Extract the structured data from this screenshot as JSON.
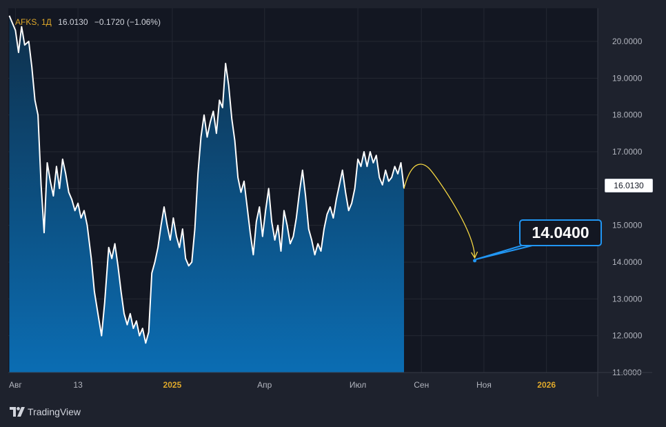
{
  "legend": {
    "symbol": "AFKS, 1Д",
    "last": "16.0130",
    "change": "−0.1720 (−1.06%)"
  },
  "price_tag": "16.0130",
  "target_label": "14.0400",
  "brand": {
    "name": "TradingView",
    "logo": "tradingview-logo-icon"
  },
  "colors": {
    "background": "#1e222d",
    "plot_background": "#131722",
    "line": "#ffffff",
    "area_top": "#0e2f4a",
    "area_bottom": "#0b6db3",
    "arrow": "#f5d742",
    "target": "#2196f3",
    "date_accent": "#e0a92a"
  },
  "chart_data": {
    "type": "area",
    "y_range": [
      11.0,
      20.9
    ],
    "y_ticks": [
      "20.0000",
      "19.0000",
      "18.0000",
      "17.0000",
      "16.0000",
      "15.0000",
      "14.0000",
      "13.0000",
      "12.0000",
      "11.0000"
    ],
    "x_range": [
      "2024-07-25",
      "2026-02-20"
    ],
    "x_ticks": [
      {
        "date": "2024-08-01",
        "label": "Авг",
        "accent": false
      },
      {
        "date": "2024-10-01",
        "label": "13",
        "accent": false
      },
      {
        "date": "2025-01-01",
        "label": "2025",
        "accent": true
      },
      {
        "date": "2025-04-01",
        "label": "Апр",
        "accent": false
      },
      {
        "date": "2025-07-01",
        "label": "Июл",
        "accent": false
      },
      {
        "date": "2025-09-01",
        "label": "Сен",
        "accent": false
      },
      {
        "date": "2025-11-01",
        "label": "Ноя",
        "accent": false
      },
      {
        "date": "2026-01-01",
        "label": "2026",
        "accent": true
      }
    ],
    "series": [
      {
        "points": [
          [
            "2024-07-26",
            20.7
          ],
          [
            "2024-08-01",
            20.3
          ],
          [
            "2024-08-04",
            19.7
          ],
          [
            "2024-08-07",
            20.4
          ],
          [
            "2024-08-10",
            19.9
          ],
          [
            "2024-08-14",
            20.0
          ],
          [
            "2024-08-17",
            19.3
          ],
          [
            "2024-08-20",
            18.4
          ],
          [
            "2024-08-23",
            18.0
          ],
          [
            "2024-08-26",
            16.1
          ],
          [
            "2024-08-29",
            14.8
          ],
          [
            "2024-09-01",
            16.7
          ],
          [
            "2024-09-04",
            16.2
          ],
          [
            "2024-09-07",
            15.8
          ],
          [
            "2024-09-10",
            16.6
          ],
          [
            "2024-09-13",
            16.0
          ],
          [
            "2024-09-16",
            16.8
          ],
          [
            "2024-09-19",
            16.4
          ],
          [
            "2024-09-22",
            15.9
          ],
          [
            "2024-09-25",
            15.7
          ],
          [
            "2024-09-28",
            15.4
          ],
          [
            "2024-10-01",
            15.6
          ],
          [
            "2024-10-04",
            15.2
          ],
          [
            "2024-10-07",
            15.4
          ],
          [
            "2024-10-10",
            15.0
          ],
          [
            "2024-10-14",
            14.1
          ],
          [
            "2024-10-17",
            13.2
          ],
          [
            "2024-10-21",
            12.5
          ],
          [
            "2024-10-24",
            12.0
          ],
          [
            "2024-10-27",
            12.9
          ],
          [
            "2024-10-31",
            14.4
          ],
          [
            "2024-11-03",
            14.1
          ],
          [
            "2024-11-06",
            14.5
          ],
          [
            "2024-11-09",
            13.9
          ],
          [
            "2024-11-12",
            13.2
          ],
          [
            "2024-11-15",
            12.6
          ],
          [
            "2024-11-18",
            12.3
          ],
          [
            "2024-11-21",
            12.6
          ],
          [
            "2024-11-24",
            12.2
          ],
          [
            "2024-11-27",
            12.4
          ],
          [
            "2024-11-30",
            12.0
          ],
          [
            "2024-12-03",
            12.2
          ],
          [
            "2024-12-06",
            11.8
          ],
          [
            "2024-12-09",
            12.1
          ],
          [
            "2024-12-12",
            13.7
          ],
          [
            "2024-12-15",
            14.0
          ],
          [
            "2024-12-18",
            14.4
          ],
          [
            "2024-12-21",
            15.0
          ],
          [
            "2024-12-24",
            15.5
          ],
          [
            "2024-12-27",
            15.0
          ],
          [
            "2024-12-30",
            14.6
          ],
          [
            "2025-01-02",
            15.2
          ],
          [
            "2025-01-05",
            14.7
          ],
          [
            "2025-01-08",
            14.4
          ],
          [
            "2025-01-11",
            14.9
          ],
          [
            "2025-01-14",
            14.1
          ],
          [
            "2025-01-17",
            13.9
          ],
          [
            "2025-01-20",
            14.0
          ],
          [
            "2025-01-23",
            14.9
          ],
          [
            "2025-01-26",
            16.4
          ],
          [
            "2025-01-29",
            17.4
          ],
          [
            "2025-02-01",
            18.0
          ],
          [
            "2025-02-04",
            17.4
          ],
          [
            "2025-02-07",
            17.8
          ],
          [
            "2025-02-10",
            18.1
          ],
          [
            "2025-02-13",
            17.5
          ],
          [
            "2025-02-16",
            18.4
          ],
          [
            "2025-02-19",
            18.2
          ],
          [
            "2025-02-22",
            19.4
          ],
          [
            "2025-02-25",
            18.8
          ],
          [
            "2025-02-28",
            17.9
          ],
          [
            "2025-03-03",
            17.3
          ],
          [
            "2025-03-06",
            16.3
          ],
          [
            "2025-03-09",
            15.9
          ],
          [
            "2025-03-12",
            16.2
          ],
          [
            "2025-03-15",
            15.5
          ],
          [
            "2025-03-18",
            14.8
          ],
          [
            "2025-03-21",
            14.2
          ],
          [
            "2025-03-24",
            15.1
          ],
          [
            "2025-03-27",
            15.5
          ],
          [
            "2025-03-30",
            14.7
          ],
          [
            "2025-04-02",
            15.4
          ],
          [
            "2025-04-05",
            16.0
          ],
          [
            "2025-04-08",
            15.1
          ],
          [
            "2025-04-11",
            14.6
          ],
          [
            "2025-04-14",
            15.0
          ],
          [
            "2025-04-17",
            14.3
          ],
          [
            "2025-04-20",
            15.4
          ],
          [
            "2025-04-23",
            15.0
          ],
          [
            "2025-04-26",
            14.5
          ],
          [
            "2025-04-29",
            14.7
          ],
          [
            "2025-05-02",
            15.2
          ],
          [
            "2025-05-05",
            15.9
          ],
          [
            "2025-05-08",
            16.5
          ],
          [
            "2025-05-11",
            15.8
          ],
          [
            "2025-05-14",
            14.9
          ],
          [
            "2025-05-17",
            14.6
          ],
          [
            "2025-05-20",
            14.2
          ],
          [
            "2025-05-23",
            14.5
          ],
          [
            "2025-05-26",
            14.3
          ],
          [
            "2025-05-29",
            14.9
          ],
          [
            "2025-06-01",
            15.3
          ],
          [
            "2025-06-04",
            15.5
          ],
          [
            "2025-06-07",
            15.2
          ],
          [
            "2025-06-10",
            15.7
          ],
          [
            "2025-06-13",
            16.1
          ],
          [
            "2025-06-16",
            16.5
          ],
          [
            "2025-06-19",
            15.9
          ],
          [
            "2025-06-22",
            15.4
          ],
          [
            "2025-06-25",
            15.6
          ],
          [
            "2025-06-28",
            16.0
          ],
          [
            "2025-07-01",
            16.8
          ],
          [
            "2025-07-04",
            16.6
          ],
          [
            "2025-07-07",
            17.0
          ],
          [
            "2025-07-10",
            16.6
          ],
          [
            "2025-07-13",
            17.0
          ],
          [
            "2025-07-16",
            16.7
          ],
          [
            "2025-07-19",
            16.9
          ],
          [
            "2025-07-22",
            16.3
          ],
          [
            "2025-07-25",
            16.1
          ],
          [
            "2025-07-28",
            16.5
          ],
          [
            "2025-07-31",
            16.2
          ],
          [
            "2025-08-03",
            16.3
          ],
          [
            "2025-08-06",
            16.6
          ],
          [
            "2025-08-09",
            16.4
          ],
          [
            "2025-08-12",
            16.7
          ],
          [
            "2025-08-15",
            16.0
          ]
        ]
      }
    ],
    "forecast_arrow": {
      "from": [
        "2025-08-15",
        16.0
      ],
      "peak": [
        "2025-09-10",
        16.5
      ],
      "to": [
        "2025-10-23",
        14.04
      ]
    },
    "target_point": [
      "2025-10-23",
      14.04
    ],
    "last_value": 16.013,
    "grid": true,
    "legend_position": "top-left"
  }
}
